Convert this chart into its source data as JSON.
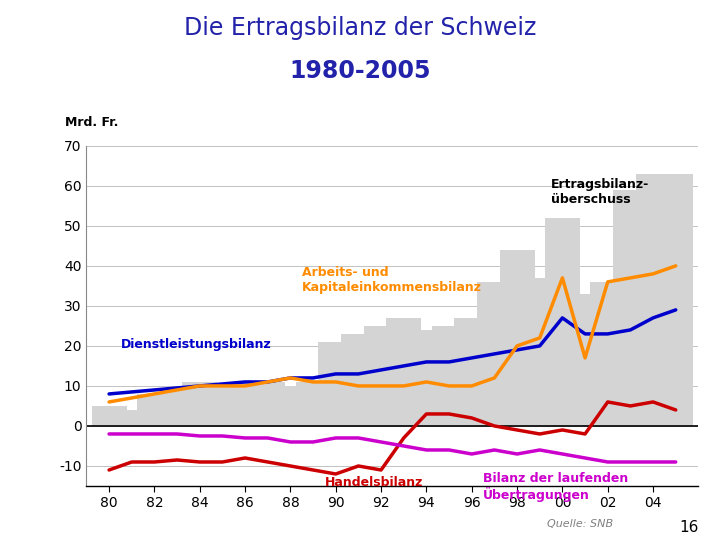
{
  "title_line1": "Die Ertragsbilanz der Schweiz",
  "title_line2": "1980-2005",
  "ylabel": "Mrd. Fr.",
  "title_color": "#2222aa",
  "background_color": "#ffffff",
  "years": [
    1980,
    1981,
    1982,
    1983,
    1984,
    1985,
    1986,
    1987,
    1988,
    1989,
    1990,
    1991,
    1992,
    1993,
    1994,
    1995,
    1996,
    1997,
    1998,
    1999,
    2000,
    2001,
    2002,
    2003,
    2004,
    2005
  ],
  "ertragsbilanz_bars": [
    5,
    4,
    8,
    9,
    11,
    10,
    11,
    11,
    10,
    11,
    21,
    23,
    25,
    27,
    24,
    25,
    27,
    36,
    44,
    37,
    52,
    33,
    36,
    59,
    63,
    63
  ],
  "dienstleistung": [
    8,
    8.5,
    9,
    9.5,
    10,
    10.5,
    11,
    11,
    12,
    12,
    13,
    13,
    14,
    15,
    16,
    16,
    17,
    18,
    19,
    20,
    27,
    23,
    23,
    24,
    27,
    29
  ],
  "arbeits_kapital": [
    6,
    7,
    8,
    9,
    10,
    10,
    10,
    11,
    12,
    11,
    11,
    10,
    10,
    10,
    11,
    10,
    10,
    12,
    20,
    22,
    37,
    17,
    36,
    37,
    38,
    40
  ],
  "handelsbilanz": [
    -11,
    -9,
    -9,
    -8.5,
    -9,
    -9,
    -8,
    -9,
    -10,
    -11,
    -12,
    -10,
    -11,
    -3,
    3,
    3,
    2,
    0,
    -1,
    -2,
    -1,
    -2,
    6,
    5,
    6,
    4
  ],
  "bilanz_uebertragungen": [
    -2,
    -2,
    -2,
    -2,
    -2.5,
    -2.5,
    -3,
    -3,
    -4,
    -4,
    -3,
    -3,
    -4,
    -5,
    -6,
    -6,
    -7,
    -6,
    -7,
    -6,
    -7,
    -8,
    -9,
    -9,
    -9,
    -9
  ],
  "bar_color": "#d4d4d4",
  "dienstleistung_color": "#0000cc",
  "arbeits_kapital_color": "#ff8c00",
  "handelsbilanz_color": "#cc0000",
  "bilanz_color": "#cc00cc",
  "ylim": [
    -15,
    70
  ],
  "yticks": [
    -10,
    0,
    10,
    20,
    30,
    40,
    50,
    60,
    70
  ],
  "source_text": "Quelle: SNB",
  "page_num": "16"
}
